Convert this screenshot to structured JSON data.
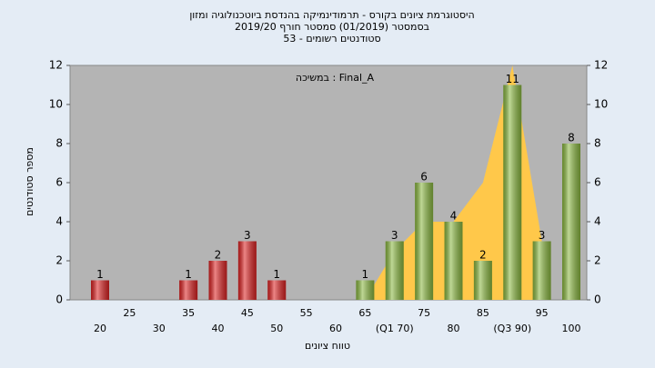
{
  "chart_data": {
    "type": "bar",
    "title": [
      "היסטוגרמת ציונים בקורס - תרמודינמיקה בהנדסת ביוטכנולוגיה ומזון",
      "בסמסטר  (01/2019)  סמסטר חורף 2019/20",
      "סטודנטים רשומים - 53"
    ],
    "annotation": "במשיכה : Final_A",
    "x_label": "טווח ציונים",
    "y_label": "מספר סטודנטים",
    "categories": [
      "20",
      "25",
      "30",
      "35",
      "40",
      "45",
      "50",
      "55",
      "60",
      "65",
      "(Q1 70)",
      "75",
      "80",
      "85",
      "(Q3 90)",
      "95",
      "100"
    ],
    "values": [
      1,
      0,
      0,
      1,
      2,
      3,
      1,
      0,
      0,
      1,
      3,
      6,
      4,
      2,
      11,
      3,
      8
    ],
    "colors": [
      "#dd2222",
      "#dd2222",
      "#dd2222",
      "#dd2222",
      "#dd2222",
      "#dd2222",
      "#dd2222",
      "#dd2222",
      "#dd2222",
      "#8ab840",
      "#8ab840",
      "#8ab840",
      "#8ab840",
      "#8ab840",
      "#8ab840",
      "#8ab840",
      "#8ab840"
    ],
    "area": {
      "color": "#ffc84a",
      "values": [
        null,
        null,
        null,
        null,
        null,
        null,
        null,
        null,
        null,
        0,
        2.5,
        4,
        4,
        6,
        12,
        3,
        null
      ]
    },
    "ylim": [
      0,
      12
    ],
    "yticks": [
      0,
      2,
      4,
      6,
      8,
      10,
      12
    ],
    "grid": false
  }
}
